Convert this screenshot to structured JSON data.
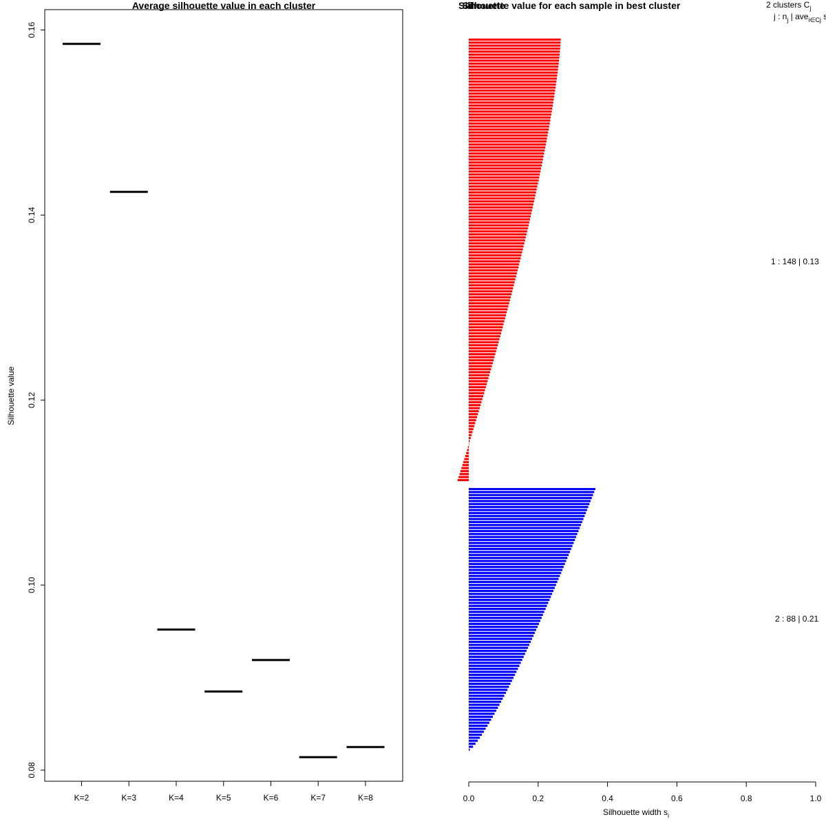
{
  "chart_data": [
    {
      "type": "scatter",
      "title": "Average silhouette value in each cluster",
      "xlabel": "",
      "ylabel": "Silhouette value",
      "categories": [
        "K=2",
        "K=3",
        "K=4",
        "K=5",
        "K=6",
        "K=7",
        "K=8"
      ],
      "values": [
        0.1585,
        0.1425,
        0.0952,
        0.0885,
        0.0919,
        0.0814,
        0.0825
      ],
      "yticks": [
        "0.08",
        "0.10",
        "0.12",
        "0.14",
        "0.16"
      ],
      "ylim": [
        0.0788,
        0.1622
      ],
      "grid": false,
      "marker": "horizontal-segment",
      "color": "#000000"
    },
    {
      "type": "bar",
      "orientation": "horizontal",
      "title": "Silhouette value for each sample in best cluster",
      "title_overlap_text": "Silhouette",
      "xlabel": "Silhouette width s",
      "xlabel_subscript": "i",
      "xticks": [
        "0.0",
        "0.2",
        "0.4",
        "0.6",
        "0.8",
        "1.0"
      ],
      "xlim": [
        0,
        1
      ],
      "grid": false,
      "legend_header": {
        "line1": "2  clusters  C",
        "line1_sub": "j",
        "line2": "j :  n",
        "line2_sub1": "j",
        "line2_mid": " | ave",
        "line2_sub2": "i∈Cj",
        "line2_end": "  s"
      },
      "series": [
        {
          "cluster": "1",
          "label": "1 :  148  |  0.13",
          "color": "#ff0000",
          "count": 148,
          "max": 0.265,
          "min": -0.032
        },
        {
          "cluster": "2",
          "label": "2 :  88  |  0.21",
          "color": "#0000ff",
          "count": 88,
          "max": 0.365,
          "min": 0.003
        }
      ]
    }
  ]
}
